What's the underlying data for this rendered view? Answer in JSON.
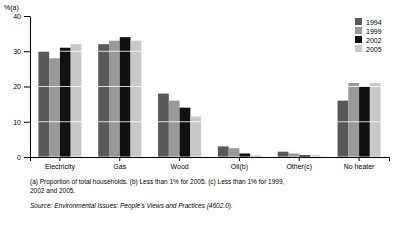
{
  "chart_data": {
    "type": "bar",
    "ylabel": "%(a)",
    "categories": [
      "Electricity",
      "Gas",
      "Wood",
      "Oil(b)",
      "Other(c)",
      "No heater"
    ],
    "series": [
      {
        "name": "1994",
        "color": "#595959",
        "values": [
          30,
          32,
          18,
          3,
          1.5,
          16
        ]
      },
      {
        "name": "1999",
        "color": "#999999",
        "values": [
          28,
          33,
          16,
          2.5,
          1,
          21
        ]
      },
      {
        "name": "2002",
        "color": "#111111",
        "values": [
          31,
          34,
          14,
          1,
          0.5,
          20
        ]
      },
      {
        "name": "2005",
        "color": "#c8c8c8",
        "values": [
          32,
          33,
          11.5,
          0.5,
          0.5,
          21
        ]
      }
    ],
    "ylim": [
      0,
      40
    ],
    "yticks": [
      0,
      10,
      20,
      30,
      40
    ],
    "grid": true,
    "legend": "upper right",
    "footnotes": [
      "(a) Proportion of total households.  (b) Less than 1% for 2005.  (c) Less than 1% for 1999,",
      "2002 and 2005."
    ],
    "source": "Source: Environmental Issues: People's Views and Practices (4602.0)."
  }
}
